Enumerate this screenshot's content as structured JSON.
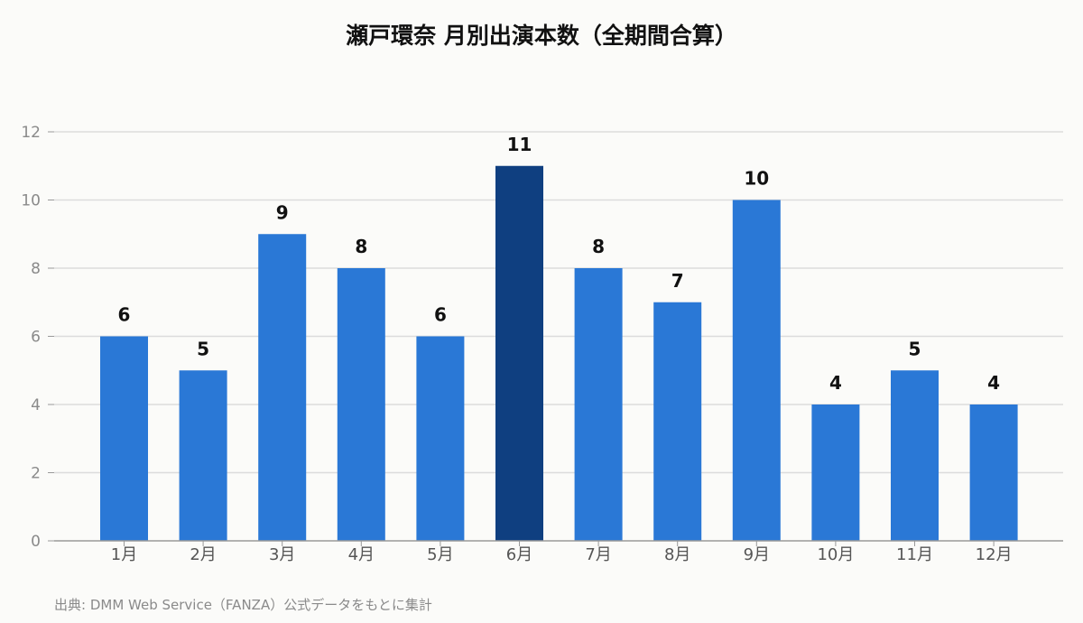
{
  "title": "瀬戸環奈 月別出演本数（全期間合算）",
  "source": "出典: DMM Web Service（FANZA）公式データをもとに集計",
  "colors": {
    "bar": "#2a78d6",
    "highlight": "#0f3f80",
    "grid": "#dcdcdc",
    "axis": "#999999"
  },
  "chart_data": {
    "type": "bar",
    "title": "瀬戸環奈 月別出演本数（全期間合算）",
    "categories": [
      "1月",
      "2月",
      "3月",
      "4月",
      "5月",
      "6月",
      "7月",
      "8月",
      "9月",
      "10月",
      "11月",
      "12月"
    ],
    "values": [
      6,
      5,
      9,
      8,
      6,
      11,
      8,
      7,
      10,
      4,
      5,
      4
    ],
    "highlight_category": "6月",
    "ylim": [
      0,
      12
    ],
    "yticks": [
      0,
      2,
      4,
      6,
      8,
      10,
      12
    ],
    "grid": true,
    "data_labels": true,
    "xlabel": "",
    "ylabel": ""
  }
}
